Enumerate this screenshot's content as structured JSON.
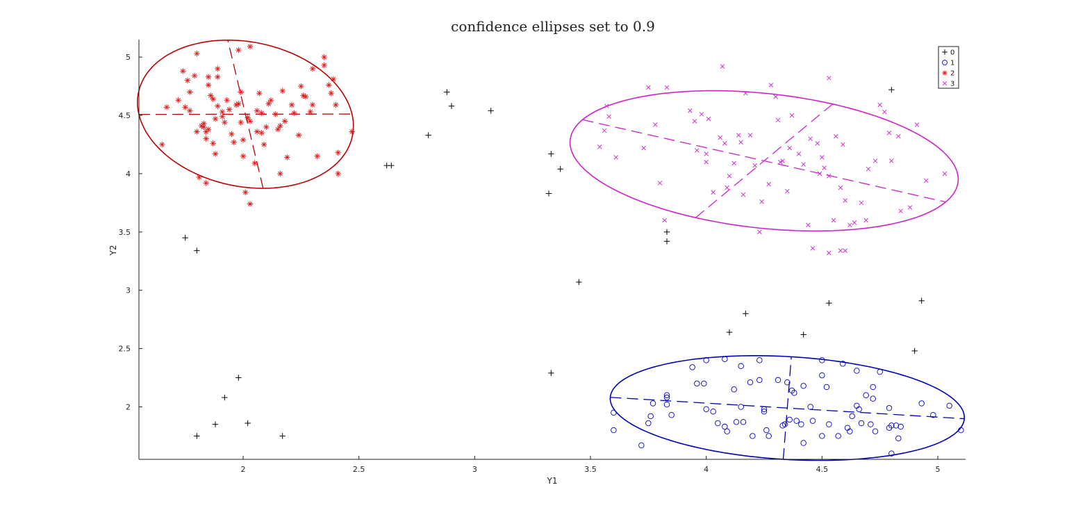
{
  "chart_data": {
    "type": "scatter",
    "title": "confidence ellipses set to 0.9",
    "xlabel": "Y1",
    "ylabel": "Y2",
    "xlim": [
      1.55,
      5.12
    ],
    "ylim": [
      1.55,
      5.15
    ],
    "xticks": [
      2,
      2.5,
      3,
      3.5,
      4,
      4.5,
      5
    ],
    "yticks": [
      2,
      2.5,
      3,
      3.5,
      4,
      4.5,
      5
    ],
    "xtick_labels": [
      "2",
      "2.5",
      "3",
      "3.5",
      "4",
      "4.5",
      "5"
    ],
    "ytick_labels": [
      "2",
      "2.5",
      "3",
      "3.5",
      "4",
      "4.5",
      "5"
    ],
    "grid": false,
    "legend_position": "top-right",
    "series": [
      {
        "name": "0",
        "marker": "plus",
        "color": "#000000",
        "points": [
          [
            1.75,
            3.45
          ],
          [
            1.8,
            3.34
          ],
          [
            1.98,
            2.25
          ],
          [
            1.92,
            2.08
          ],
          [
            1.88,
            1.85
          ],
          [
            2.02,
            1.86
          ],
          [
            1.8,
            1.75
          ],
          [
            2.17,
            1.75
          ],
          [
            2.62,
            4.07
          ],
          [
            2.64,
            4.07
          ],
          [
            2.8,
            4.33
          ],
          [
            2.88,
            4.7
          ],
          [
            2.9,
            4.58
          ],
          [
            3.07,
            4.54
          ],
          [
            3.32,
            3.83
          ],
          [
            3.33,
            4.17
          ],
          [
            3.37,
            4.04
          ],
          [
            3.33,
            2.29
          ],
          [
            3.45,
            3.07
          ],
          [
            3.83,
            3.5
          ],
          [
            3.83,
            3.42
          ],
          [
            4.1,
            2.64
          ],
          [
            4.17,
            2.8
          ],
          [
            4.42,
            2.62
          ],
          [
            4.53,
            2.89
          ],
          [
            4.8,
            4.72
          ],
          [
            4.9,
            2.48
          ],
          [
            4.93,
            2.91
          ]
        ]
      },
      {
        "name": "1",
        "marker": "circle",
        "color": "#0000cc",
        "points": [
          [
            3.6,
            1.95
          ],
          [
            3.6,
            1.8
          ],
          [
            3.72,
            1.67
          ],
          [
            3.75,
            1.86
          ],
          [
            3.76,
            1.92
          ],
          [
            3.77,
            2.03
          ],
          [
            3.83,
            2.08
          ],
          [
            3.83,
            2.1
          ],
          [
            3.83,
            2.02
          ],
          [
            3.85,
            1.93
          ],
          [
            3.94,
            2.34
          ],
          [
            3.96,
            2.2
          ],
          [
            3.99,
            2.2
          ],
          [
            4.0,
            2.4
          ],
          [
            4.0,
            1.98
          ],
          [
            4.03,
            1.96
          ],
          [
            4.05,
            1.86
          ],
          [
            4.08,
            1.83
          ],
          [
            4.09,
            1.79
          ],
          [
            4.08,
            2.41
          ],
          [
            4.12,
            2.15
          ],
          [
            4.13,
            1.87
          ],
          [
            4.15,
            2.35
          ],
          [
            4.15,
            2.0
          ],
          [
            4.16,
            1.87
          ],
          [
            4.19,
            2.21
          ],
          [
            4.2,
            1.75
          ],
          [
            4.23,
            2.23
          ],
          [
            4.23,
            2.4
          ],
          [
            4.25,
            1.98
          ],
          [
            4.25,
            1.96
          ],
          [
            4.26,
            1.8
          ],
          [
            4.27,
            1.75
          ],
          [
            4.31,
            2.23
          ],
          [
            4.33,
            1.84
          ],
          [
            4.34,
            1.85
          ],
          [
            4.35,
            2.21
          ],
          [
            4.36,
            1.89
          ],
          [
            4.37,
            2.14
          ],
          [
            4.38,
            2.12
          ],
          [
            4.39,
            1.88
          ],
          [
            4.41,
            1.85
          ],
          [
            4.42,
            2.18
          ],
          [
            4.42,
            1.69
          ],
          [
            4.45,
            2.0
          ],
          [
            4.46,
            1.88
          ],
          [
            4.5,
            1.75
          ],
          [
            4.5,
            2.4
          ],
          [
            4.5,
            2.27
          ],
          [
            4.52,
            2.17
          ],
          [
            4.53,
            1.85
          ],
          [
            4.57,
            1.75
          ],
          [
            4.59,
            2.37
          ],
          [
            4.61,
            1.82
          ],
          [
            4.62,
            1.79
          ],
          [
            4.63,
            1.92
          ],
          [
            4.65,
            2.31
          ],
          [
            4.65,
            2.01
          ],
          [
            4.66,
            1.98
          ],
          [
            4.67,
            1.86
          ],
          [
            4.69,
            2.1
          ],
          [
            4.71,
            1.85
          ],
          [
            4.72,
            2.07
          ],
          [
            4.72,
            2.17
          ],
          [
            4.73,
            1.79
          ],
          [
            4.75,
            2.3
          ],
          [
            4.79,
            1.99
          ],
          [
            4.79,
            1.82
          ],
          [
            4.8,
            1.84
          ],
          [
            4.8,
            1.6
          ],
          [
            4.82,
            1.84
          ],
          [
            4.83,
            1.73
          ],
          [
            4.84,
            1.83
          ],
          [
            4.93,
            2.03
          ],
          [
            4.98,
            1.93
          ],
          [
            5.05,
            2.01
          ],
          [
            5.1,
            1.8
          ]
        ]
      },
      {
        "name": "2",
        "marker": "asterisk",
        "color": "#e02020",
        "points": [
          [
            1.65,
            4.25
          ],
          [
            1.67,
            4.57
          ],
          [
            1.72,
            4.63
          ],
          [
            1.74,
            4.88
          ],
          [
            1.75,
            4.57
          ],
          [
            1.76,
            4.8
          ],
          [
            1.77,
            4.7
          ],
          [
            1.77,
            4.54
          ],
          [
            1.79,
            4.84
          ],
          [
            1.8,
            5.03
          ],
          [
            1.8,
            4.36
          ],
          [
            1.81,
            3.97
          ],
          [
            1.82,
            4.41
          ],
          [
            1.83,
            4.43
          ],
          [
            1.83,
            4.4
          ],
          [
            1.84,
            3.92
          ],
          [
            1.84,
            4.3
          ],
          [
            1.85,
            4.83
          ],
          [
            1.85,
            4.76
          ],
          [
            1.85,
            4.38
          ],
          [
            1.86,
            4.67
          ],
          [
            1.87,
            4.26
          ],
          [
            1.87,
            4.64
          ],
          [
            1.88,
            4.47
          ],
          [
            1.88,
            4.17
          ],
          [
            1.89,
            4.83
          ],
          [
            1.89,
            4.58
          ],
          [
            1.91,
            4.49
          ],
          [
            1.91,
            4.53
          ],
          [
            1.92,
            4.44
          ],
          [
            1.93,
            4.63
          ],
          [
            1.94,
            4.55
          ],
          [
            1.95,
            4.34
          ],
          [
            1.96,
            4.27
          ],
          [
            1.97,
            4.59
          ],
          [
            1.98,
            4.6
          ],
          [
            1.99,
            4.7
          ],
          [
            1.99,
            4.44
          ],
          [
            2.0,
            4.29
          ],
          [
            2.0,
            4.15
          ],
          [
            2.01,
            3.84
          ],
          [
            2.02,
            4.48
          ],
          [
            2.03,
            4.45
          ],
          [
            2.03,
            3.74
          ],
          [
            2.05,
            4.09
          ],
          [
            2.06,
            4.54
          ],
          [
            2.06,
            4.36
          ],
          [
            2.07,
            4.69
          ],
          [
            2.08,
            4.52
          ],
          [
            2.08,
            4.35
          ],
          [
            2.09,
            4.25
          ],
          [
            2.1,
            4.4
          ],
          [
            2.11,
            4.6
          ],
          [
            2.12,
            4.63
          ],
          [
            2.14,
            4.51
          ],
          [
            2.15,
            4.38
          ],
          [
            2.16,
            4.41
          ],
          [
            2.16,
            4.0
          ],
          [
            2.17,
            4.71
          ],
          [
            2.18,
            4.45
          ],
          [
            2.19,
            4.14
          ],
          [
            2.21,
            4.59
          ],
          [
            2.22,
            4.52
          ],
          [
            2.24,
            4.33
          ],
          [
            2.25,
            4.75
          ],
          [
            2.26,
            4.67
          ],
          [
            2.27,
            4.66
          ],
          [
            2.29,
            4.53
          ],
          [
            2.3,
            4.9
          ],
          [
            2.3,
            4.59
          ],
          [
            2.32,
            4.15
          ],
          [
            2.35,
            4.93
          ],
          [
            2.37,
            4.76
          ],
          [
            2.38,
            4.69
          ],
          [
            2.39,
            4.81
          ],
          [
            2.4,
            4.59
          ],
          [
            2.41,
            4.18
          ],
          [
            2.41,
            4.0
          ],
          [
            2.47,
            4.36
          ],
          [
            2.35,
            5.0
          ],
          [
            2.03,
            5.09
          ],
          [
            1.98,
            5.06
          ],
          [
            1.84,
            4.36
          ],
          [
            1.89,
            4.9
          ]
        ]
      },
      {
        "name": "3",
        "marker": "x",
        "color": "#cc33cc",
        "points": [
          [
            3.54,
            4.23
          ],
          [
            3.56,
            4.37
          ],
          [
            3.57,
            4.58
          ],
          [
            3.58,
            4.49
          ],
          [
            3.61,
            4.14
          ],
          [
            3.73,
            4.22
          ],
          [
            3.78,
            4.42
          ],
          [
            3.8,
            3.92
          ],
          [
            3.82,
            3.6
          ],
          [
            3.83,
            4.74
          ],
          [
            3.93,
            4.54
          ],
          [
            3.95,
            4.45
          ],
          [
            3.96,
            4.2
          ],
          [
            3.98,
            4.51
          ],
          [
            4.0,
            4.17
          ],
          [
            4.0,
            4.1
          ],
          [
            4.01,
            4.47
          ],
          [
            4.03,
            3.84
          ],
          [
            4.06,
            4.31
          ],
          [
            4.07,
            4.92
          ],
          [
            4.08,
            4.26
          ],
          [
            4.09,
            3.88
          ],
          [
            4.1,
            3.98
          ],
          [
            4.12,
            4.09
          ],
          [
            4.14,
            4.33
          ],
          [
            4.15,
            4.27
          ],
          [
            4.16,
            3.82
          ],
          [
            4.17,
            4.69
          ],
          [
            4.19,
            4.33
          ],
          [
            4.21,
            4.07
          ],
          [
            4.23,
            3.5
          ],
          [
            4.24,
            3.76
          ],
          [
            4.27,
            3.91
          ],
          [
            4.28,
            4.76
          ],
          [
            4.3,
            4.66
          ],
          [
            4.31,
            4.46
          ],
          [
            4.32,
            4.1
          ],
          [
            4.33,
            4.11
          ],
          [
            4.35,
            3.85
          ],
          [
            4.36,
            4.22
          ],
          [
            4.37,
            4.5
          ],
          [
            4.4,
            4.17
          ],
          [
            4.42,
            4.08
          ],
          [
            4.44,
            3.56
          ],
          [
            4.45,
            4.3
          ],
          [
            4.48,
            4.26
          ],
          [
            4.49,
            4.0
          ],
          [
            4.5,
            4.14
          ],
          [
            4.51,
            4.05
          ],
          [
            4.53,
            3.98
          ],
          [
            4.53,
            4.82
          ],
          [
            4.55,
            3.6
          ],
          [
            4.56,
            4.32
          ],
          [
            4.58,
            3.88
          ],
          [
            4.59,
            4.25
          ],
          [
            4.6,
            3.77
          ],
          [
            4.62,
            3.56
          ],
          [
            4.64,
            3.58
          ],
          [
            4.67,
            3.75
          ],
          [
            4.69,
            3.6
          ],
          [
            4.7,
            4.04
          ],
          [
            4.73,
            4.11
          ],
          [
            4.75,
            4.59
          ],
          [
            4.77,
            4.53
          ],
          [
            4.79,
            4.35
          ],
          [
            4.8,
            4.11
          ],
          [
            4.83,
            4.32
          ],
          [
            4.84,
            3.68
          ],
          [
            4.88,
            3.71
          ],
          [
            4.91,
            4.42
          ],
          [
            4.95,
            3.94
          ],
          [
            5.03,
            4.0
          ],
          [
            4.46,
            3.36
          ],
          [
            4.53,
            3.32
          ],
          [
            4.58,
            3.34
          ],
          [
            3.75,
            4.74
          ],
          [
            4.6,
            3.34
          ]
        ]
      }
    ],
    "ellipses": [
      {
        "series": "1",
        "color": "#0000bb",
        "center": [
          4.35,
          1.99
        ],
        "semi_major": 0.77,
        "semi_minor": 0.44,
        "semi_major_dir": [
          1,
          -0.12
        ],
        "semi_minor_dir": [
          0.04,
          1
        ]
      },
      {
        "series": "2",
        "color": "#bb0000",
        "center": [
          2.01,
          4.51
        ],
        "semi_major": 0.46,
        "semi_minor": 0.64,
        "semi_major_dir": [
          1,
          0.004
        ],
        "semi_minor_dir": [
          -0.12,
          1
        ]
      },
      {
        "series": "3",
        "color": "#cc22cc",
        "center": [
          4.25,
          4.11
        ],
        "semi_major": 0.86,
        "semi_minor": 0.57,
        "semi_major_dir": [
          1,
          -0.45
        ],
        "semi_minor_dir": [
          0.85,
          1.4
        ]
      }
    ]
  }
}
